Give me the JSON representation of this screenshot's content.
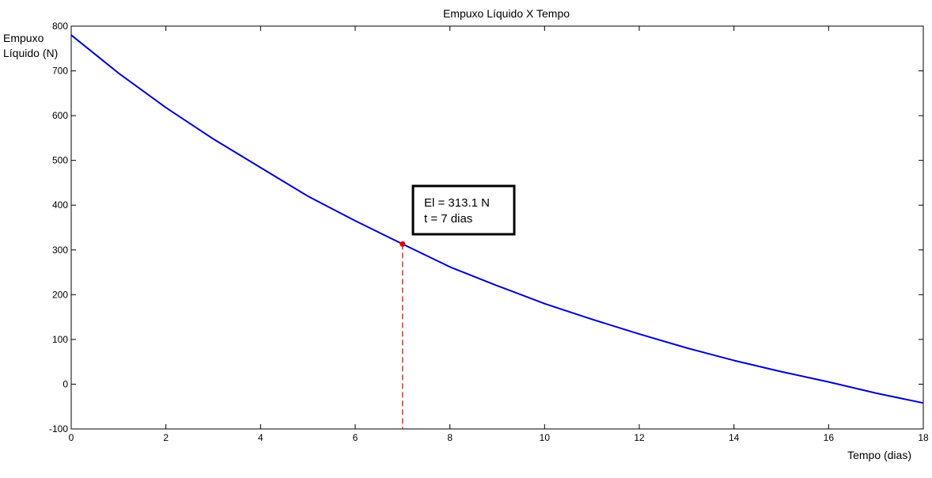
{
  "chart_data": {
    "type": "line",
    "title": "Empuxo Líquido X Tempo",
    "xlabel": "Tempo (dias)",
    "ylabel_lines": [
      "Empuxo",
      "Líquido (N)"
    ],
    "xlim": [
      0,
      18
    ],
    "ylim": [
      -100,
      800
    ],
    "xticks": [
      0,
      2,
      4,
      6,
      8,
      10,
      12,
      14,
      16,
      18
    ],
    "yticks": [
      -100,
      0,
      100,
      200,
      300,
      400,
      500,
      600,
      700,
      800
    ],
    "grid": false,
    "series": [
      {
        "color": "#0000cc",
        "x": [
          0,
          1,
          2,
          3,
          4,
          5,
          6,
          7,
          8,
          9,
          10,
          11,
          12,
          13,
          14,
          15,
          16,
          17,
          18
        ],
        "y": [
          780,
          695,
          618,
          548,
          484,
          420,
          365,
          313.1,
          262,
          220,
          180,
          145,
          112,
          81,
          53,
          28,
          5,
          -20,
          -42
        ]
      }
    ],
    "marker": {
      "x": 7,
      "y": 313.1,
      "color": "#dd0000"
    },
    "annotation": {
      "lines": [
        "El = 313.1 N",
        "t = 7 dias"
      ]
    }
  }
}
